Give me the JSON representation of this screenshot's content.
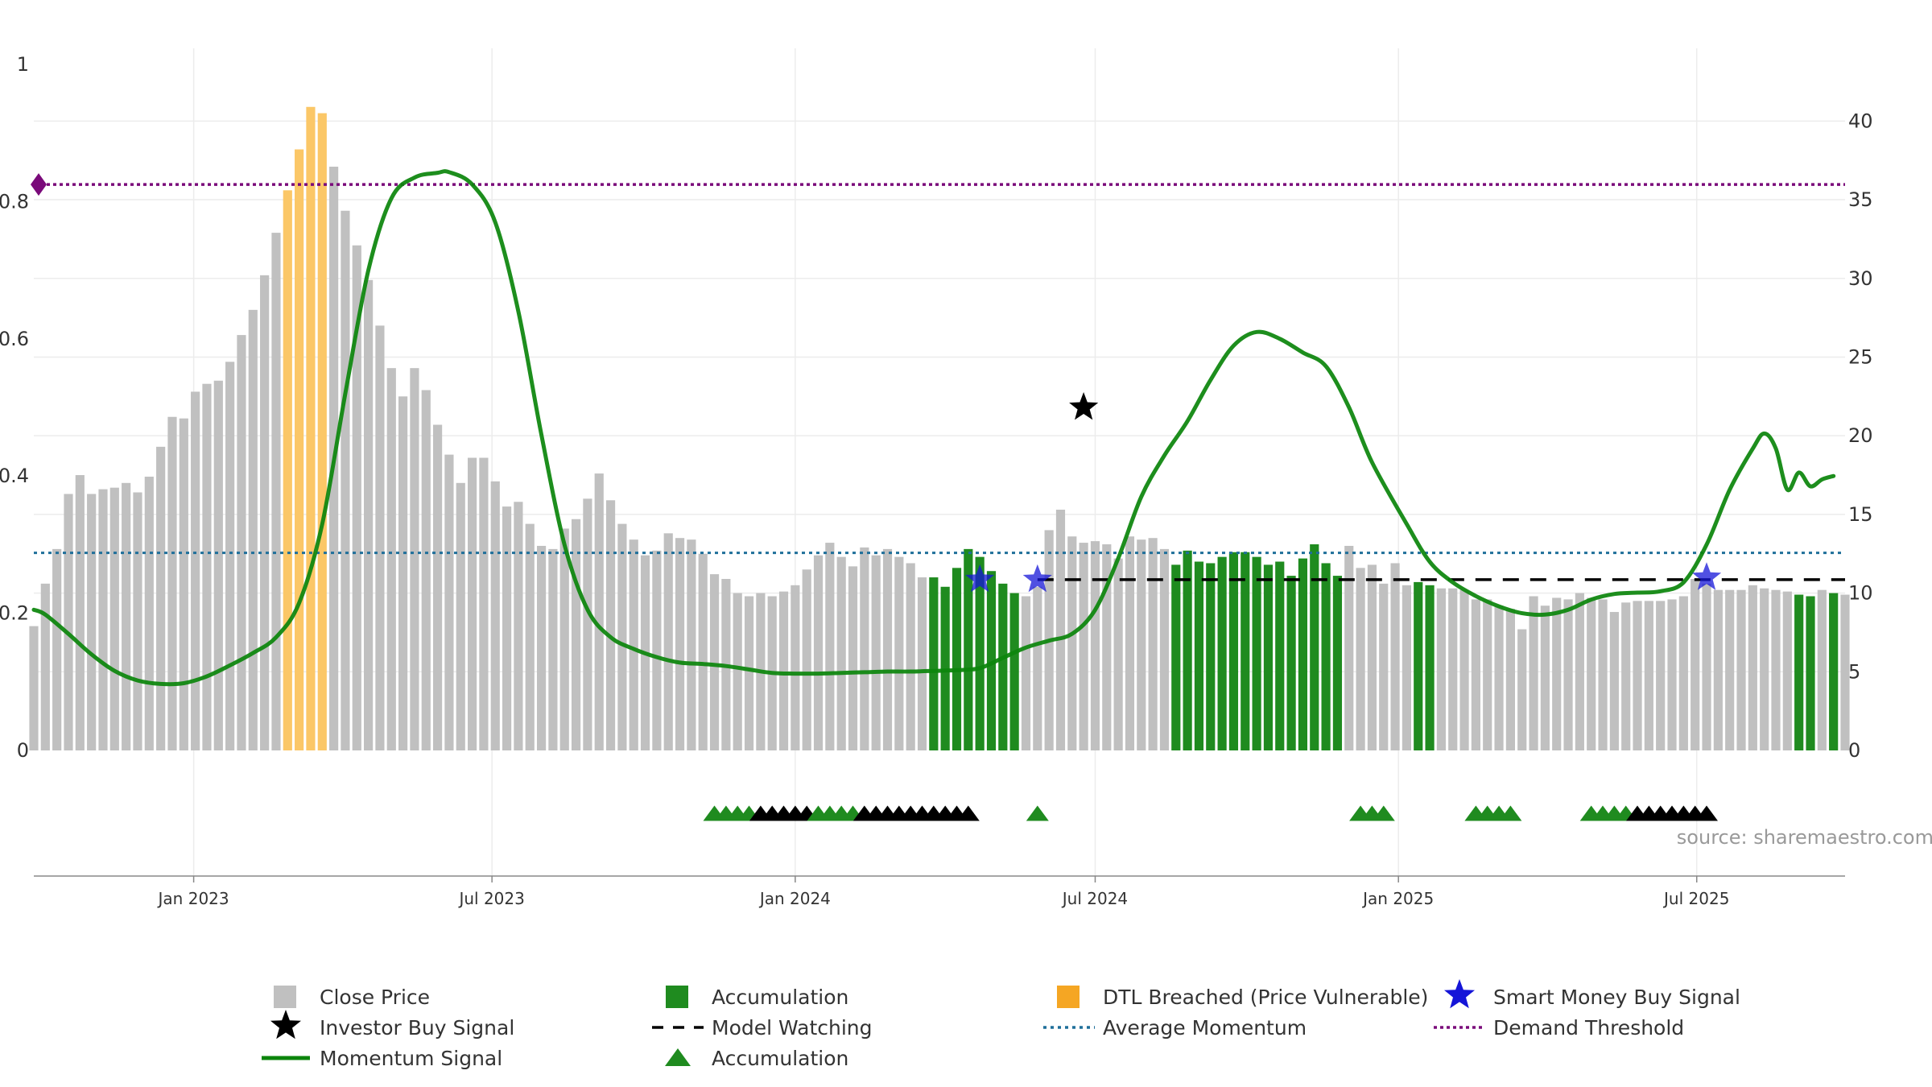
{
  "source_text": "source: sharemaestro.com",
  "colors": {
    "close_price": "#c0c0c0",
    "accumulation": "#1f8b1f",
    "dtl": "#fbc767",
    "momentum": "#0c850c",
    "average_momentum": "#1f6f9a",
    "demand_threshold": "#7a0a7a",
    "smart_money": "#1515d8",
    "investor": "#000000",
    "watching": "#000000"
  },
  "chart_data": {
    "type": "bar",
    "x_ticks": [
      {
        "date": "2023-01-01",
        "label": "Jan 2023"
      },
      {
        "date": "2023-07-01",
        "label": "Jul 2023"
      },
      {
        "date": "2024-01-01",
        "label": "Jan 2024"
      },
      {
        "date": "2024-07-01",
        "label": "Jul 2024"
      },
      {
        "date": "2025-01-01",
        "label": "Jan 2025"
      },
      {
        "date": "2025-07-01",
        "label": "Jul 2025"
      }
    ],
    "x_range": [
      "2022-09-26",
      "2025-09-29"
    ],
    "first_week": "2022-09-26",
    "week_count": 158,
    "y_left": {
      "range": [
        0,
        1.0
      ],
      "ticks": [
        0,
        0.2,
        0.4,
        0.6,
        0.8,
        1
      ],
      "tick_labels": [
        "0",
        "0.2",
        "0.4",
        "0.6",
        "0.8",
        "1"
      ]
    },
    "y_right": {
      "range": [
        0,
        43.6
      ],
      "ticks": [
        0,
        5,
        10,
        15,
        20,
        25,
        30,
        35,
        40
      ],
      "tick_labels": [
        "0",
        "5",
        "10",
        "15",
        "20",
        "25",
        "30",
        "35",
        "40"
      ]
    },
    "close_prices": [
      7.9,
      10.6,
      12.8,
      16.3,
      17.5,
      16.3,
      16.6,
      16.7,
      17.0,
      16.4,
      17.4,
      19.3,
      21.2,
      21.1,
      22.8,
      23.3,
      23.5,
      24.7,
      26.4,
      28.0,
      30.2,
      32.9,
      35.6,
      38.2,
      40.9,
      40.5,
      37.1,
      34.3,
      32.1,
      29.9,
      27.0,
      24.3,
      22.5,
      24.3,
      22.9,
      20.7,
      18.8,
      17.0,
      18.6,
      18.6,
      17.1,
      15.5,
      15.8,
      14.4,
      13.0,
      12.8,
      14.1,
      14.7,
      16.0,
      17.6,
      15.9,
      14.4,
      13.4,
      12.4,
      12.7,
      13.8,
      13.5,
      13.4,
      12.5,
      11.2,
      10.9,
      10.0,
      9.8,
      10.0,
      9.8,
      10.1,
      10.5,
      11.5,
      12.4,
      13.2,
      12.3,
      11.7,
      12.9,
      12.4,
      12.8,
      12.3,
      11.9,
      11.0,
      11.0,
      10.4,
      11.6,
      12.8,
      12.3,
      11.4,
      10.6,
      10.0,
      9.8,
      10.4,
      14.0,
      15.3,
      13.6,
      13.2,
      13.3,
      13.1,
      12.2,
      13.6,
      13.4,
      13.5,
      12.8,
      11.8,
      12.7,
      12.0,
      11.9,
      12.3,
      12.6,
      12.6,
      12.3,
      11.8,
      12.0,
      11.1,
      12.2,
      13.1,
      11.9,
      11.1,
      13.0,
      11.6,
      11.8,
      10.6,
      11.9,
      10.5,
      10.7,
      10.5,
      10.3,
      10.3,
      10.2,
      9.6,
      9.6,
      9.2,
      9.0,
      7.7,
      9.8,
      9.2,
      9.7,
      9.6,
      10.0,
      9.7,
      9.6,
      8.8,
      9.4,
      9.5,
      9.5,
      9.5,
      9.6,
      9.8,
      10.9,
      10.6,
      10.2,
      10.2,
      10.2,
      10.5,
      10.3,
      10.2,
      10.1,
      9.9,
      9.8,
      10.2,
      10.0,
      9.9
    ],
    "bar_states": "CCCCCCCCCCCCCCCCCCCCCCDDDDCCCCCCCCCCCCCCCCCCCCCCCCCCCCCCCCCCCCCCCCCCCCCCCCCCCCAAAAAAAACCCCCCCCCCCCCAAAAAAAAAAAAAAACCCCCCAACCCCCCCCCCCCCCCCCCCCCCCCCCCCCCCAACACCCCCCCCCCCCAAAAACCCCCCCCCCAAAAAAAAAACCCCCCCCCCC",
    "momentum_signal": [
      [
        "2022-09-26",
        0.205
      ],
      [
        "2022-10-03",
        0.198
      ],
      [
        "2022-10-17",
        0.17
      ],
      [
        "2022-10-31",
        0.14
      ],
      [
        "2022-11-14",
        0.116
      ],
      [
        "2022-11-28",
        0.102
      ],
      [
        "2022-12-12",
        0.097
      ],
      [
        "2022-12-26",
        0.098
      ],
      [
        "2023-01-09",
        0.108
      ],
      [
        "2023-01-23",
        0.124
      ],
      [
        "2023-02-06",
        0.142
      ],
      [
        "2023-02-20",
        0.165
      ],
      [
        "2023-03-06",
        0.215
      ],
      [
        "2023-03-20",
        0.33
      ],
      [
        "2023-04-03",
        0.52
      ],
      [
        "2023-04-17",
        0.7
      ],
      [
        "2023-05-01",
        0.805
      ],
      [
        "2023-05-15",
        0.835
      ],
      [
        "2023-05-29",
        0.842
      ],
      [
        "2023-06-05",
        0.843
      ],
      [
        "2023-06-19",
        0.825
      ],
      [
        "2023-07-03",
        0.77
      ],
      [
        "2023-07-17",
        0.64
      ],
      [
        "2023-07-31",
        0.46
      ],
      [
        "2023-08-14",
        0.3
      ],
      [
        "2023-08-28",
        0.205
      ],
      [
        "2023-09-11",
        0.165
      ],
      [
        "2023-09-25",
        0.148
      ],
      [
        "2023-10-09",
        0.136
      ],
      [
        "2023-10-23",
        0.128
      ],
      [
        "2023-11-06",
        0.126
      ],
      [
        "2023-11-20",
        0.123
      ],
      [
        "2023-12-04",
        0.118
      ],
      [
        "2023-12-18",
        0.113
      ],
      [
        "2024-01-01",
        0.112
      ],
      [
        "2024-01-15",
        0.112
      ],
      [
        "2024-01-29",
        0.113
      ],
      [
        "2024-02-12",
        0.114
      ],
      [
        "2024-02-26",
        0.115
      ],
      [
        "2024-03-11",
        0.115
      ],
      [
        "2024-03-25",
        0.116
      ],
      [
        "2024-04-08",
        0.117
      ],
      [
        "2024-04-22",
        0.12
      ],
      [
        "2024-05-06",
        0.135
      ],
      [
        "2024-05-20",
        0.15
      ],
      [
        "2024-06-03",
        0.16
      ],
      [
        "2024-06-17",
        0.17
      ],
      [
        "2024-07-01",
        0.205
      ],
      [
        "2024-07-15",
        0.28
      ],
      [
        "2024-07-29",
        0.37
      ],
      [
        "2024-08-12",
        0.43
      ],
      [
        "2024-08-26",
        0.48
      ],
      [
        "2024-09-09",
        0.54
      ],
      [
        "2024-09-23",
        0.59
      ],
      [
        "2024-10-07",
        0.61
      ],
      [
        "2024-10-21",
        0.6
      ],
      [
        "2024-11-04",
        0.58
      ],
      [
        "2024-11-18",
        0.56
      ],
      [
        "2024-12-02",
        0.5
      ],
      [
        "2024-12-16",
        0.42
      ],
      [
        "2025-01-06",
        0.33
      ],
      [
        "2025-01-20",
        0.275
      ],
      [
        "2025-02-03",
        0.245
      ],
      [
        "2025-02-17",
        0.225
      ],
      [
        "2025-03-03",
        0.21
      ],
      [
        "2025-03-17",
        0.2
      ],
      [
        "2025-03-31",
        0.198
      ],
      [
        "2025-04-14",
        0.205
      ],
      [
        "2025-04-28",
        0.22
      ],
      [
        "2025-05-12",
        0.228
      ],
      [
        "2025-05-26",
        0.23
      ],
      [
        "2025-06-09",
        0.232
      ],
      [
        "2025-06-23",
        0.245
      ],
      [
        "2025-07-07",
        0.3
      ],
      [
        "2025-07-21",
        0.38
      ],
      [
        "2025-08-04",
        0.44
      ],
      [
        "2025-08-11",
        0.462
      ],
      [
        "2025-08-18",
        0.44
      ],
      [
        "2025-08-25",
        0.38
      ],
      [
        "2025-09-01",
        0.405
      ],
      [
        "2025-09-08",
        0.385
      ],
      [
        "2025-09-15",
        0.395
      ],
      [
        "2025-09-22",
        0.4
      ]
    ],
    "average_momentum": 0.288,
    "demand_threshold": 0.825,
    "model_watching": {
      "level": 0.249,
      "from": "2024-05-27",
      "to": "2025-09-29"
    },
    "investor_buy_signal": [
      {
        "date": "2024-06-24",
        "value": 0.5
      }
    ],
    "smart_money_buy_signal": [
      {
        "date": "2024-04-22",
        "value": 0.249
      },
      {
        "date": "2024-05-27",
        "value": 0.249
      },
      {
        "date": "2025-07-07",
        "value": 0.252
      }
    ],
    "strip_markers": [
      {
        "date": "2023-11-13",
        "kind": "accumulation"
      },
      {
        "date": "2023-11-20",
        "kind": "accumulation"
      },
      {
        "date": "2023-11-27",
        "kind": "accumulation"
      },
      {
        "date": "2023-12-04",
        "kind": "accumulation"
      },
      {
        "date": "2023-12-11",
        "kind": "watching"
      },
      {
        "date": "2023-12-18",
        "kind": "watching"
      },
      {
        "date": "2023-12-25",
        "kind": "watching"
      },
      {
        "date": "2024-01-01",
        "kind": "watching"
      },
      {
        "date": "2024-01-08",
        "kind": "watching"
      },
      {
        "date": "2024-01-15",
        "kind": "accumulation"
      },
      {
        "date": "2024-01-22",
        "kind": "accumulation"
      },
      {
        "date": "2024-01-29",
        "kind": "accumulation"
      },
      {
        "date": "2024-02-05",
        "kind": "accumulation"
      },
      {
        "date": "2024-02-12",
        "kind": "watching"
      },
      {
        "date": "2024-02-19",
        "kind": "watching"
      },
      {
        "date": "2024-02-26",
        "kind": "watching"
      },
      {
        "date": "2024-03-04",
        "kind": "watching"
      },
      {
        "date": "2024-03-11",
        "kind": "watching"
      },
      {
        "date": "2024-03-18",
        "kind": "watching"
      },
      {
        "date": "2024-03-25",
        "kind": "watching"
      },
      {
        "date": "2024-04-01",
        "kind": "watching"
      },
      {
        "date": "2024-04-08",
        "kind": "watching"
      },
      {
        "date": "2024-04-15",
        "kind": "watching"
      },
      {
        "date": "2024-05-27",
        "kind": "accumulation"
      },
      {
        "date": "2024-12-09",
        "kind": "accumulation"
      },
      {
        "date": "2024-12-16",
        "kind": "accumulation"
      },
      {
        "date": "2024-12-23",
        "kind": "accumulation"
      },
      {
        "date": "2025-02-17",
        "kind": "accumulation"
      },
      {
        "date": "2025-02-24",
        "kind": "accumulation"
      },
      {
        "date": "2025-03-03",
        "kind": "accumulation"
      },
      {
        "date": "2025-03-10",
        "kind": "accumulation"
      },
      {
        "date": "2025-04-28",
        "kind": "accumulation"
      },
      {
        "date": "2025-05-05",
        "kind": "accumulation"
      },
      {
        "date": "2025-05-12",
        "kind": "accumulation"
      },
      {
        "date": "2025-05-19",
        "kind": "accumulation"
      },
      {
        "date": "2025-05-26",
        "kind": "watching"
      },
      {
        "date": "2025-06-02",
        "kind": "watching"
      },
      {
        "date": "2025-06-09",
        "kind": "watching"
      },
      {
        "date": "2025-06-16",
        "kind": "watching"
      },
      {
        "date": "2025-06-23",
        "kind": "watching"
      },
      {
        "date": "2025-06-30",
        "kind": "watching"
      },
      {
        "date": "2025-07-07",
        "kind": "watching"
      }
    ],
    "legend": [
      {
        "key": "close",
        "label": "Close Price"
      },
      {
        "key": "acc_bar",
        "label": "Accumulation"
      },
      {
        "key": "dtl",
        "label": "DTL Breached (Price Vulnerable)"
      },
      {
        "key": "smart",
        "label": "Smart Money Buy Signal"
      },
      {
        "key": "investor",
        "label": "Investor Buy Signal"
      },
      {
        "key": "watching",
        "label": "Model Watching"
      },
      {
        "key": "avgmom",
        "label": "Average Momentum"
      },
      {
        "key": "demand",
        "label": "Demand Threshold"
      },
      {
        "key": "momentum",
        "label": "Momentum Signal"
      },
      {
        "key": "acc_tri",
        "label": "Accumulation"
      }
    ],
    "legend_placement": "bottom",
    "grid": true
  }
}
